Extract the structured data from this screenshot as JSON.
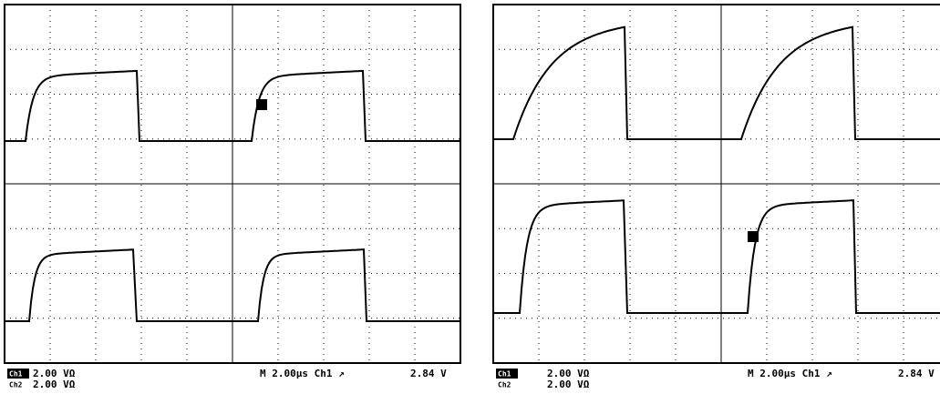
{
  "left": {
    "ch1_label": "Ch1",
    "ch1_scale": "2.00 VΩ",
    "ch2_label": "Ch2",
    "ch2_scale": "2.00 VΩ",
    "timebase": "M 2.00µs Ch1 ↗",
    "trigger": "2.84 V"
  },
  "right": {
    "ch1_label": "Ch1",
    "ch1_scale": "2.00 VΩ",
    "ch2_label": "Ch2",
    "ch2_scale": "2.00 VΩ",
    "timebase": "M 2.00µs Ch1 ↗",
    "trigger": "2.84 V"
  }
}
